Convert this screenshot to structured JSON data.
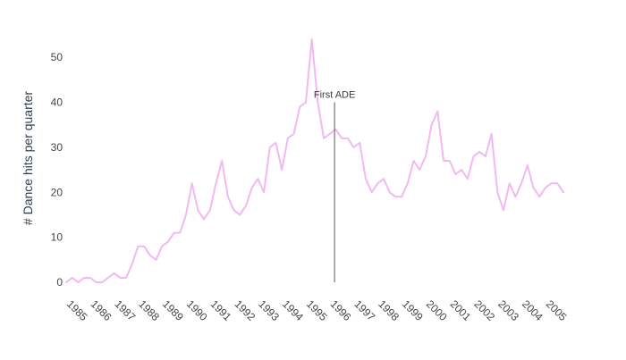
{
  "chart_data": {
    "type": "line",
    "title": "",
    "xlabel": "",
    "ylabel": "# Dance hits per quarter",
    "ylim": [
      0,
      55
    ],
    "yticks": [
      0,
      10,
      20,
      30,
      40,
      50
    ],
    "xlim": [
      1985.0,
      2005.75
    ],
    "xticks": [
      "1985",
      "1986",
      "1987",
      "1988",
      "1989",
      "1990",
      "1991",
      "1992",
      "1993",
      "1994",
      "1995",
      "1996",
      "1997",
      "1998",
      "1999",
      "2000",
      "2001",
      "2002",
      "2003",
      "2004",
      "2005"
    ],
    "grid": false,
    "legend": "none",
    "series": [
      {
        "color": "#f2b8f2",
        "x": [
          1985.0,
          1985.25,
          1985.5,
          1985.75,
          1986.0,
          1986.25,
          1986.5,
          1986.75,
          1987.0,
          1987.25,
          1987.5,
          1987.75,
          1988.0,
          1988.25,
          1988.5,
          1988.75,
          1989.0,
          1989.25,
          1989.5,
          1989.75,
          1990.0,
          1990.25,
          1990.5,
          1990.75,
          1991.0,
          1991.25,
          1991.5,
          1991.75,
          1992.0,
          1992.25,
          1992.5,
          1992.75,
          1993.0,
          1993.25,
          1993.5,
          1993.75,
          1994.0,
          1994.25,
          1994.5,
          1994.75,
          1995.0,
          1995.25,
          1995.5,
          1995.75,
          1996.0,
          1996.25,
          1996.5,
          1996.75,
          1997.0,
          1997.25,
          1997.5,
          1997.75,
          1998.0,
          1998.25,
          1998.5,
          1998.75,
          1999.0,
          1999.25,
          1999.5,
          1999.75,
          2000.0,
          2000.25,
          2000.5,
          2000.75,
          2001.0,
          2001.25,
          2001.5,
          2001.75,
          2002.0,
          2002.25,
          2002.5,
          2002.75,
          2003.0,
          2003.25,
          2003.5,
          2003.75,
          2004.0,
          2004.25,
          2004.5,
          2004.75,
          2005.0,
          2005.25,
          2005.5,
          2005.75
        ],
        "values": [
          0,
          1,
          0,
          1,
          1,
          0,
          0,
          1,
          2,
          1,
          1,
          4,
          8,
          8,
          6,
          5,
          8,
          9,
          11,
          11,
          15,
          22,
          16,
          14,
          16,
          22,
          27,
          19,
          16,
          15,
          17,
          21,
          23,
          20,
          30,
          31,
          25,
          32,
          33,
          39,
          40,
          54,
          40,
          32,
          33,
          34,
          32,
          32,
          30,
          31,
          23,
          20,
          22,
          23,
          20,
          19,
          19,
          22,
          27,
          25,
          28,
          35,
          38,
          27,
          27,
          24,
          25,
          23,
          28,
          29,
          28,
          33,
          20,
          16,
          22,
          19,
          22,
          26,
          21,
          19,
          21,
          22,
          22,
          20
        ]
      }
    ],
    "annotations": [
      {
        "label": "First ADE",
        "x": 1996.2
      }
    ]
  },
  "colors": {
    "line": "#f2b8f2",
    "annotation_line": "#5a5a5a",
    "text": "#444444"
  }
}
